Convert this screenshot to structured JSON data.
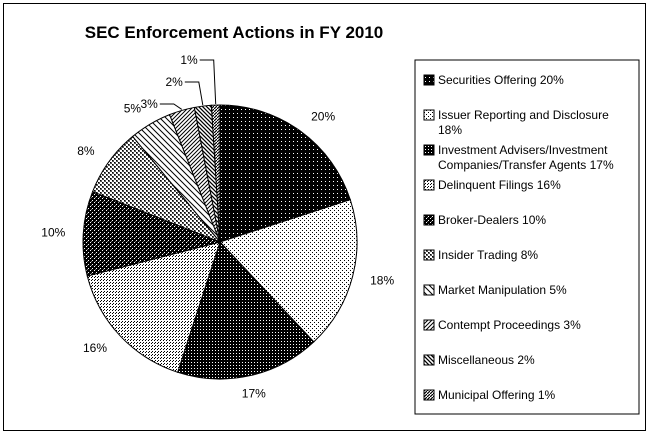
{
  "chart_data": {
    "type": "pie",
    "title": "SEC Enforcement Actions in FY 2010",
    "slices": [
      {
        "legend": "Securities Offering 20%",
        "legend_lines": [
          "Securities Offering 20%"
        ],
        "value": 20,
        "label": "20%"
      },
      {
        "legend": "Issuer Reporting and Disclosure 18%",
        "legend_lines": [
          "Issuer Reporting and Disclosure",
          "18%"
        ],
        "value": 18,
        "label": "18%"
      },
      {
        "legend": "Investment Advisers/Investment Companies/Transfer Agents 17%",
        "legend_lines": [
          "Investment Advisers/Investment",
          "Companies/Transfer Agents 17%"
        ],
        "value": 17,
        "label": "17%"
      },
      {
        "legend": "Delinquent Filings 16%",
        "legend_lines": [
          "Delinquent Filings 16%"
        ],
        "value": 16,
        "label": "16%"
      },
      {
        "legend": "Broker-Dealers 10%",
        "legend_lines": [
          "Broker-Dealers 10%"
        ],
        "value": 10,
        "label": "10%"
      },
      {
        "legend": "Insider Trading 8%",
        "legend_lines": [
          "Insider Trading 8%"
        ],
        "value": 8,
        "label": "8%"
      },
      {
        "legend": "Market Manipulation 5%",
        "legend_lines": [
          "Market Manipulation 5%"
        ],
        "value": 5,
        "label": "5%"
      },
      {
        "legend": "Contempt Proceedings 3%",
        "legend_lines": [
          "Contempt Proceedings 3%"
        ],
        "value": 3,
        "label": "3%"
      },
      {
        "legend": "Miscellaneous 2%",
        "legend_lines": [
          "Miscellaneous 2%"
        ],
        "value": 2,
        "label": "2%"
      },
      {
        "legend": "Municipal Offering 1%",
        "legend_lines": [
          "Municipal Offering 1%"
        ],
        "value": 1,
        "label": "1%"
      }
    ],
    "legend_position": "right",
    "start_angle": "12 o'clock",
    "direction": "clockwise"
  }
}
